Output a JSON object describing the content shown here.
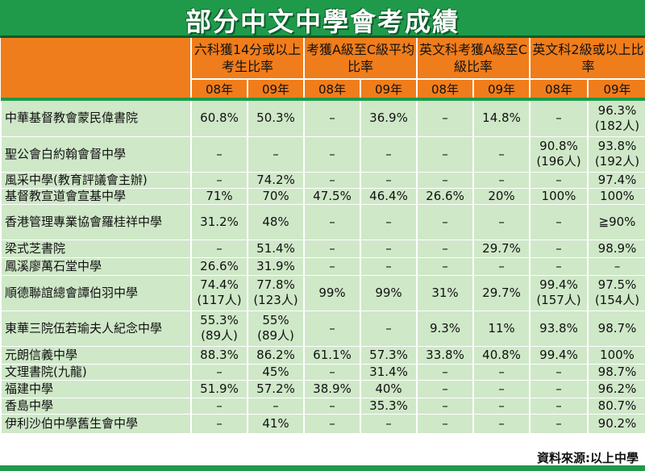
{
  "title": "部分中文中學會考成績",
  "headers": {
    "col1": "六科獲14分或以上考生比率",
    "col2": "考獲A級至C級平均比率",
    "col3": "英文科考獲A級至C級比率",
    "col4": "英文科2級或以上比率"
  },
  "years": [
    "08年",
    "09年",
    "08年",
    "09年",
    "08年",
    "09年",
    "08年",
    "09年"
  ],
  "rows": [
    {
      "school": "中華基督教會蒙民偉書院",
      "cells": [
        "60.8%",
        "50.3%",
        "–",
        "36.9%",
        "–",
        "14.8%",
        "–",
        "96.3%\n(182人)"
      ]
    },
    {
      "school": "聖公會白約翰會督中學",
      "cells": [
        "–",
        "–",
        "–",
        "–",
        "–",
        "–",
        "90.8%\n(196人)",
        "93.8%\n(192人)"
      ]
    },
    {
      "school": "風采中學(教育評議會主辦)",
      "cells": [
        "–",
        "74.2%",
        "–",
        "–",
        "–",
        "–",
        "–",
        "97.4%"
      ]
    },
    {
      "school": "基督教宣道會宣基中學",
      "cells": [
        "71%",
        "70%",
        "47.5%",
        "46.4%",
        "26.6%",
        "20%",
        "100%",
        "100%"
      ]
    },
    {
      "school": "香港管理專業協會羅桂祥中學",
      "cells": [
        "31.2%",
        "48%",
        "–",
        "–",
        "–",
        "–",
        "–",
        "≧90%"
      ]
    },
    {
      "school": "梁式芝書院",
      "cells": [
        "–",
        "51.4%",
        "–",
        "–",
        "–",
        "29.7%",
        "–",
        "98.9%"
      ]
    },
    {
      "school": "鳳溪廖萬石堂中學",
      "cells": [
        "26.6%",
        "31.9%",
        "–",
        "–",
        "–",
        "–",
        "–",
        "–"
      ]
    },
    {
      "school": "順德聯誼總會譚伯羽中學",
      "cells": [
        "74.4%\n(117人)",
        "77.8%\n(123人)",
        "99%",
        "99%",
        "31%",
        "29.7%",
        "99.4%\n(157人)",
        "97.5%\n(154人)"
      ]
    },
    {
      "school": "東華三院伍若瑜夫人紀念中學",
      "cells": [
        "55.3%\n(89人)",
        "55%\n(89人)",
        "–",
        "–",
        "9.3%",
        "11%",
        "93.8%",
        "98.7%"
      ]
    },
    {
      "school": "元朗信義中學",
      "cells": [
        "88.3%",
        "86.2%",
        "61.1%",
        "57.3%",
        "33.8%",
        "40.8%",
        "99.4%",
        "100%"
      ]
    },
    {
      "school": "文理書院(九龍)",
      "cells": [
        "–",
        "45%",
        "–",
        "31.4%",
        "–",
        "–",
        "–",
        "98.7%"
      ]
    },
    {
      "school": "福建中學",
      "cells": [
        "51.9%",
        "57.2%",
        "38.9%",
        "40%",
        "–",
        "–",
        "–",
        "96.2%"
      ]
    },
    {
      "school": "香島中學",
      "cells": [
        "–",
        "–",
        "–",
        "35.3%",
        "–",
        "–",
        "–",
        "80.7%"
      ]
    },
    {
      "school": "伊利沙伯中學舊生會中學",
      "cells": [
        "–",
        "41%",
        "–",
        "–",
        "–",
        "–",
        "–",
        "90.2%"
      ]
    }
  ],
  "source": "資料來源:以上中學",
  "colors": {
    "green": "#1f9a4a",
    "orange": "#f07d1b",
    "row": "#cfe8c8"
  }
}
